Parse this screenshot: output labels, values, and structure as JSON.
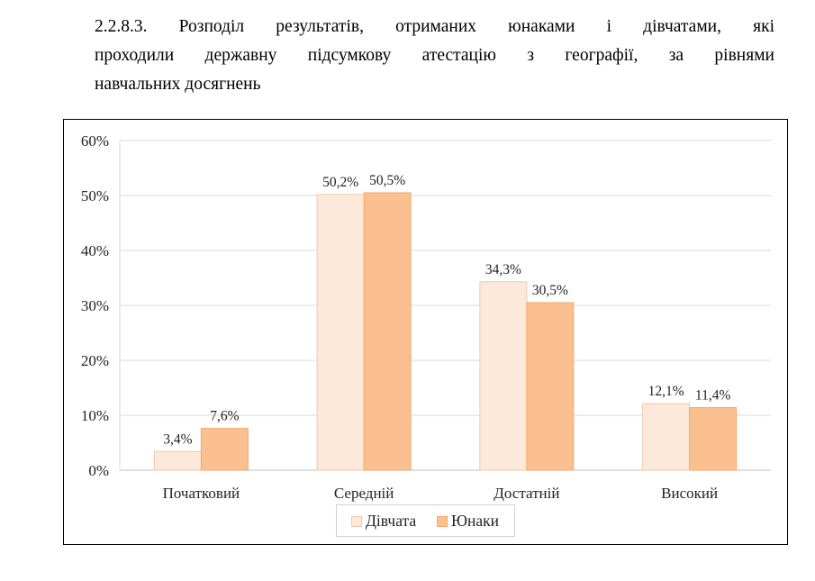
{
  "caption": {
    "line1": "2.2.8.3. Розподіл результатів, отриманих юнаками і дівчатами, які",
    "line2": "проходили державну підсумкову атестацію з географії, за рівнями",
    "line3": "навчальних досягнень"
  },
  "chart_data": {
    "type": "bar",
    "categories": [
      "Початковий",
      "Середній",
      "Достатній",
      "Високий"
    ],
    "series": [
      {
        "name": "Дівчата",
        "values": [
          3.4,
          50.2,
          34.3,
          12.1
        ],
        "labels": [
          "3,4%",
          "50,2%",
          "34,3%",
          "12,1%"
        ],
        "color": "#fde9d9",
        "stroke": "#f2c9a8"
      },
      {
        "name": "Юнаки",
        "values": [
          7.6,
          50.5,
          30.5,
          11.4
        ],
        "labels": [
          "7,6%",
          "50,5%",
          "30,5%",
          "11,4%"
        ],
        "color": "#fac090",
        "stroke": "#f4a96e"
      }
    ],
    "yticks": [
      "0%",
      "10%",
      "20%",
      "30%",
      "40%",
      "50%",
      "60%"
    ],
    "ylim": [
      0,
      60
    ],
    "grid": true,
    "legend_position": "bottom"
  }
}
